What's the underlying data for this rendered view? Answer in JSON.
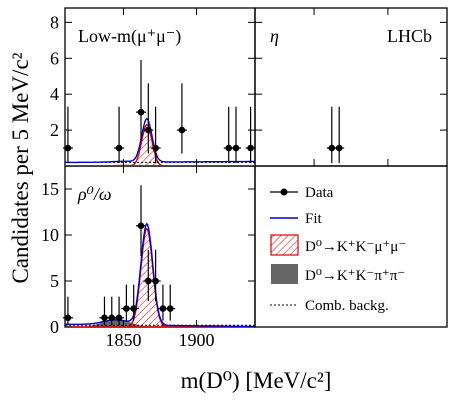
{
  "chart_data": {
    "type": "scatter",
    "title": "",
    "xlabel": "m(D⁰) [MeV/c²]",
    "ylabel": "Candidates per 5 MeV/c²",
    "xlim": [
      1810,
      1940
    ],
    "x_tick_labels": [
      "1850",
      "1900"
    ],
    "x_ticks": [
      1850,
      1900
    ],
    "lhcb_label": "LHCb",
    "panels": [
      {
        "id": "low-mass",
        "label": "Low-m(μ⁺μ⁻)",
        "ylim": [
          0,
          8.8
        ],
        "y_ticks": [
          2,
          4,
          6,
          8
        ],
        "y_tick_labels": [
          "2",
          "4",
          "6",
          "8"
        ],
        "data": {
          "x": [
            1812,
            1847,
            1862,
            1867,
            1872,
            1890,
            1922,
            1927,
            1937
          ],
          "y": [
            1,
            1,
            3,
            2,
            1,
            2,
            1,
            1,
            1
          ],
          "err_up": [
            2.3,
            2.3,
            2.9,
            2.6,
            2.3,
            2.6,
            2.3,
            2.3,
            2.3
          ],
          "err_down": [
            0.83,
            0.83,
            1.6,
            1.3,
            0.83,
            1.3,
            0.83,
            0.83,
            0.83
          ]
        },
        "fit": {
          "peak": 2.4,
          "mean": 1866,
          "sigma": 3.5,
          "baseline_start": 0.2,
          "baseline_end": 0.25
        },
        "signal_peak": 2.3,
        "misid_peak": 0.08,
        "comb": 0.2
      },
      {
        "id": "eta",
        "label": "η",
        "ylim": [
          0,
          8.8
        ],
        "y_ticks": [
          2,
          4,
          6,
          8
        ],
        "data": {
          "x": [
            1862,
            1867
          ],
          "y": [
            1,
            1
          ],
          "err_up": [
            2.3,
            2.3
          ],
          "err_down": [
            0.83,
            0.83
          ]
        }
      },
      {
        "id": "rho-omega",
        "label": "ρ⁰/ω",
        "ylim": [
          0,
          17.5
        ],
        "y_ticks": [
          0,
          5,
          10,
          15
        ],
        "y_tick_labels": [
          "0",
          "5",
          "10",
          "15"
        ],
        "data": {
          "x": [
            1812,
            1837,
            1842,
            1847,
            1852,
            1857,
            1862,
            1867,
            1872,
            1877,
            1882
          ],
          "y": [
            1,
            1,
            1,
            1,
            2,
            2,
            11,
            5,
            5,
            2,
            2
          ],
          "err_up": [
            2.3,
            2.3,
            2.3,
            2.3,
            2.6,
            2.6,
            4.4,
            3.4,
            3.4,
            2.6,
            2.6
          ],
          "err_down": [
            0.83,
            0.83,
            0.83,
            0.83,
            1.3,
            1.3,
            3.3,
            2.2,
            2.2,
            1.3,
            1.3
          ]
        },
        "fit": {
          "peak": 11.0,
          "mean": 1866,
          "sigma": 4.0,
          "baseline_start": 0.3,
          "baseline_end": 0.05
        },
        "signal_peak": 10.7,
        "misid_peak": 0.9,
        "misid_mean": 1845,
        "misid_sigma": 9,
        "comb": 0.2
      }
    ],
    "legend": {
      "placement": "bottom-right panel",
      "entries": [
        {
          "label": "Data",
          "style": "marker"
        },
        {
          "label": "Fit",
          "style": "line",
          "color": "#0000cc"
        },
        {
          "label": "D⁰→K⁺K⁻μ⁺μ⁻",
          "style": "hatched",
          "color": "#dd0000"
        },
        {
          "label": "D⁰→K⁺K⁻π⁺π⁻",
          "style": "filled",
          "color": "#666666"
        },
        {
          "label": "Comb. backg.",
          "style": "dashed",
          "color": "#000000"
        }
      ]
    },
    "colors": {
      "fit": "#0000cc",
      "signal": "#dd0000",
      "misid": "#666666",
      "data": "#000000"
    }
  }
}
